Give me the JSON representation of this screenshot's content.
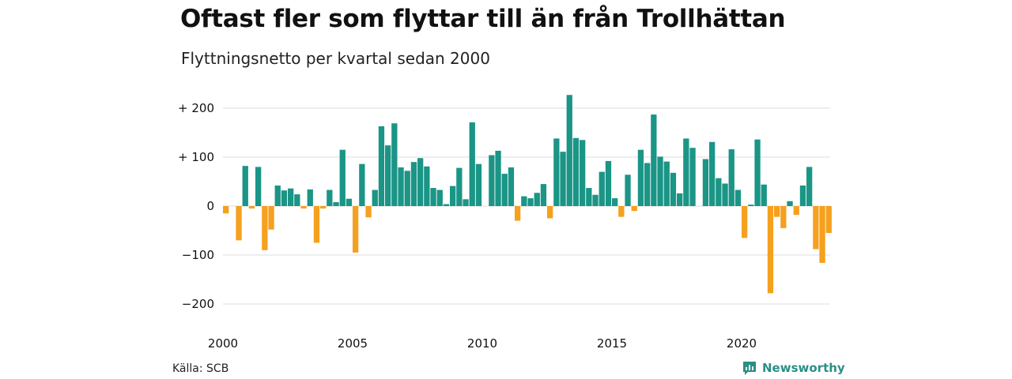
{
  "title": "Oftast fler som flyttar till än från Trollhättan",
  "subtitle": "Flyttningsnetto per kvartal sedan 2000",
  "source": "Källa: SCB",
  "brand": "Newsworthy",
  "colors": {
    "positive": "#1a9586",
    "negative": "#f5a01e",
    "grid": "#dddddd",
    "brand": "#2a8f86"
  },
  "chart_data": {
    "type": "bar",
    "title": "Oftast fler som flyttar till än från Trollhättan",
    "subtitle": "Flyttningsnetto per kvartal sedan 2000",
    "xlabel": "",
    "ylabel": "",
    "ylim": [
      -220,
      240
    ],
    "grid": true,
    "y_ticks": [
      {
        "value": 200,
        "label": "+ 200"
      },
      {
        "value": 100,
        "label": "+ 100"
      },
      {
        "value": 0,
        "label": "0"
      },
      {
        "value": -100,
        "label": "−100"
      },
      {
        "value": -200,
        "label": "−200"
      }
    ],
    "x_ticks": [
      {
        "year": 2000,
        "label": "2000"
      },
      {
        "year": 2005,
        "label": "2005"
      },
      {
        "year": 2010,
        "label": "2010"
      },
      {
        "year": 2015,
        "label": "2015"
      },
      {
        "year": 2020,
        "label": "2020"
      }
    ],
    "start": "2000 Q1",
    "frequency": "quarter",
    "values": [
      -15,
      0,
      -70,
      82,
      -5,
      80,
      -90,
      -48,
      42,
      32,
      36,
      24,
      -5,
      34,
      -75,
      -5,
      33,
      8,
      115,
      15,
      -95,
      86,
      -23,
      33,
      163,
      124,
      169,
      79,
      72,
      90,
      98,
      81,
      37,
      33,
      4,
      41,
      78,
      14,
      171,
      86,
      0,
      104,
      113,
      66,
      79,
      -30,
      20,
      16,
      27,
      45,
      -25,
      138,
      111,
      227,
      139,
      135,
      37,
      23,
      70,
      92,
      16,
      -22,
      64,
      -10,
      115,
      88,
      187,
      101,
      91,
      68,
      26,
      138,
      119,
      0,
      96,
      131,
      57,
      46,
      116,
      33,
      -65,
      3,
      136,
      44,
      -178,
      -22,
      -45,
      10,
      -18,
      42,
      80,
      -88,
      -116,
      -55
    ]
  }
}
